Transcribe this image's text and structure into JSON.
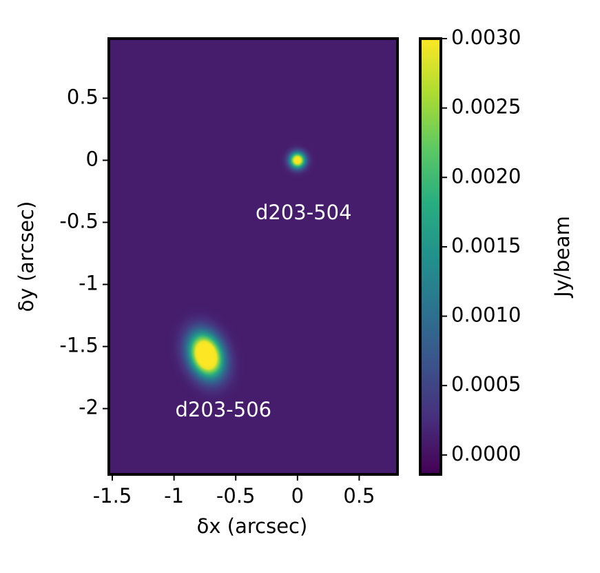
{
  "chart_data": {
    "type": "image",
    "xlabel": "δx (arcsec)",
    "ylabel": "δy (arcsec)",
    "xlim": [
      -1.528,
      0.81
    ],
    "ylim": [
      -2.53,
      0.98
    ],
    "xticks": [
      -1.5,
      -1,
      -0.5,
      0,
      0.5
    ],
    "yticks": [
      0.5,
      0,
      -0.5,
      -1,
      -1.5,
      -2
    ],
    "colormap": "viridis",
    "background": 0.0001,
    "sources": [
      {
        "x": 0,
        "y": 0,
        "peak": 0.0036,
        "width": 0.1,
        "height": 0.1
      },
      {
        "x": -0.74,
        "y": -1.57,
        "peak": 0.0045,
        "width": 0.2,
        "height": 0.28
      }
    ],
    "annotations": [
      {
        "text": "d203-504",
        "x": 0.05,
        "y": -0.43
      },
      {
        "text": "d203-506",
        "x": -0.6,
        "y": -2.02
      }
    ],
    "colorbar": {
      "label": "Jy/beam",
      "clim": [
        -0.00014,
        0.003
      ],
      "ticks": [
        {
          "value": 0,
          "label": "0.0000"
        },
        {
          "value": 0.0005,
          "label": "0.0005"
        },
        {
          "value": 0.001,
          "label": "0.0010"
        },
        {
          "value": 0.0015,
          "label": "0.0015"
        },
        {
          "value": 0.002,
          "label": "0.0020"
        },
        {
          "value": 0.0025,
          "label": "0.0025"
        },
        {
          "value": 0.003,
          "label": "0.0030"
        }
      ]
    }
  }
}
